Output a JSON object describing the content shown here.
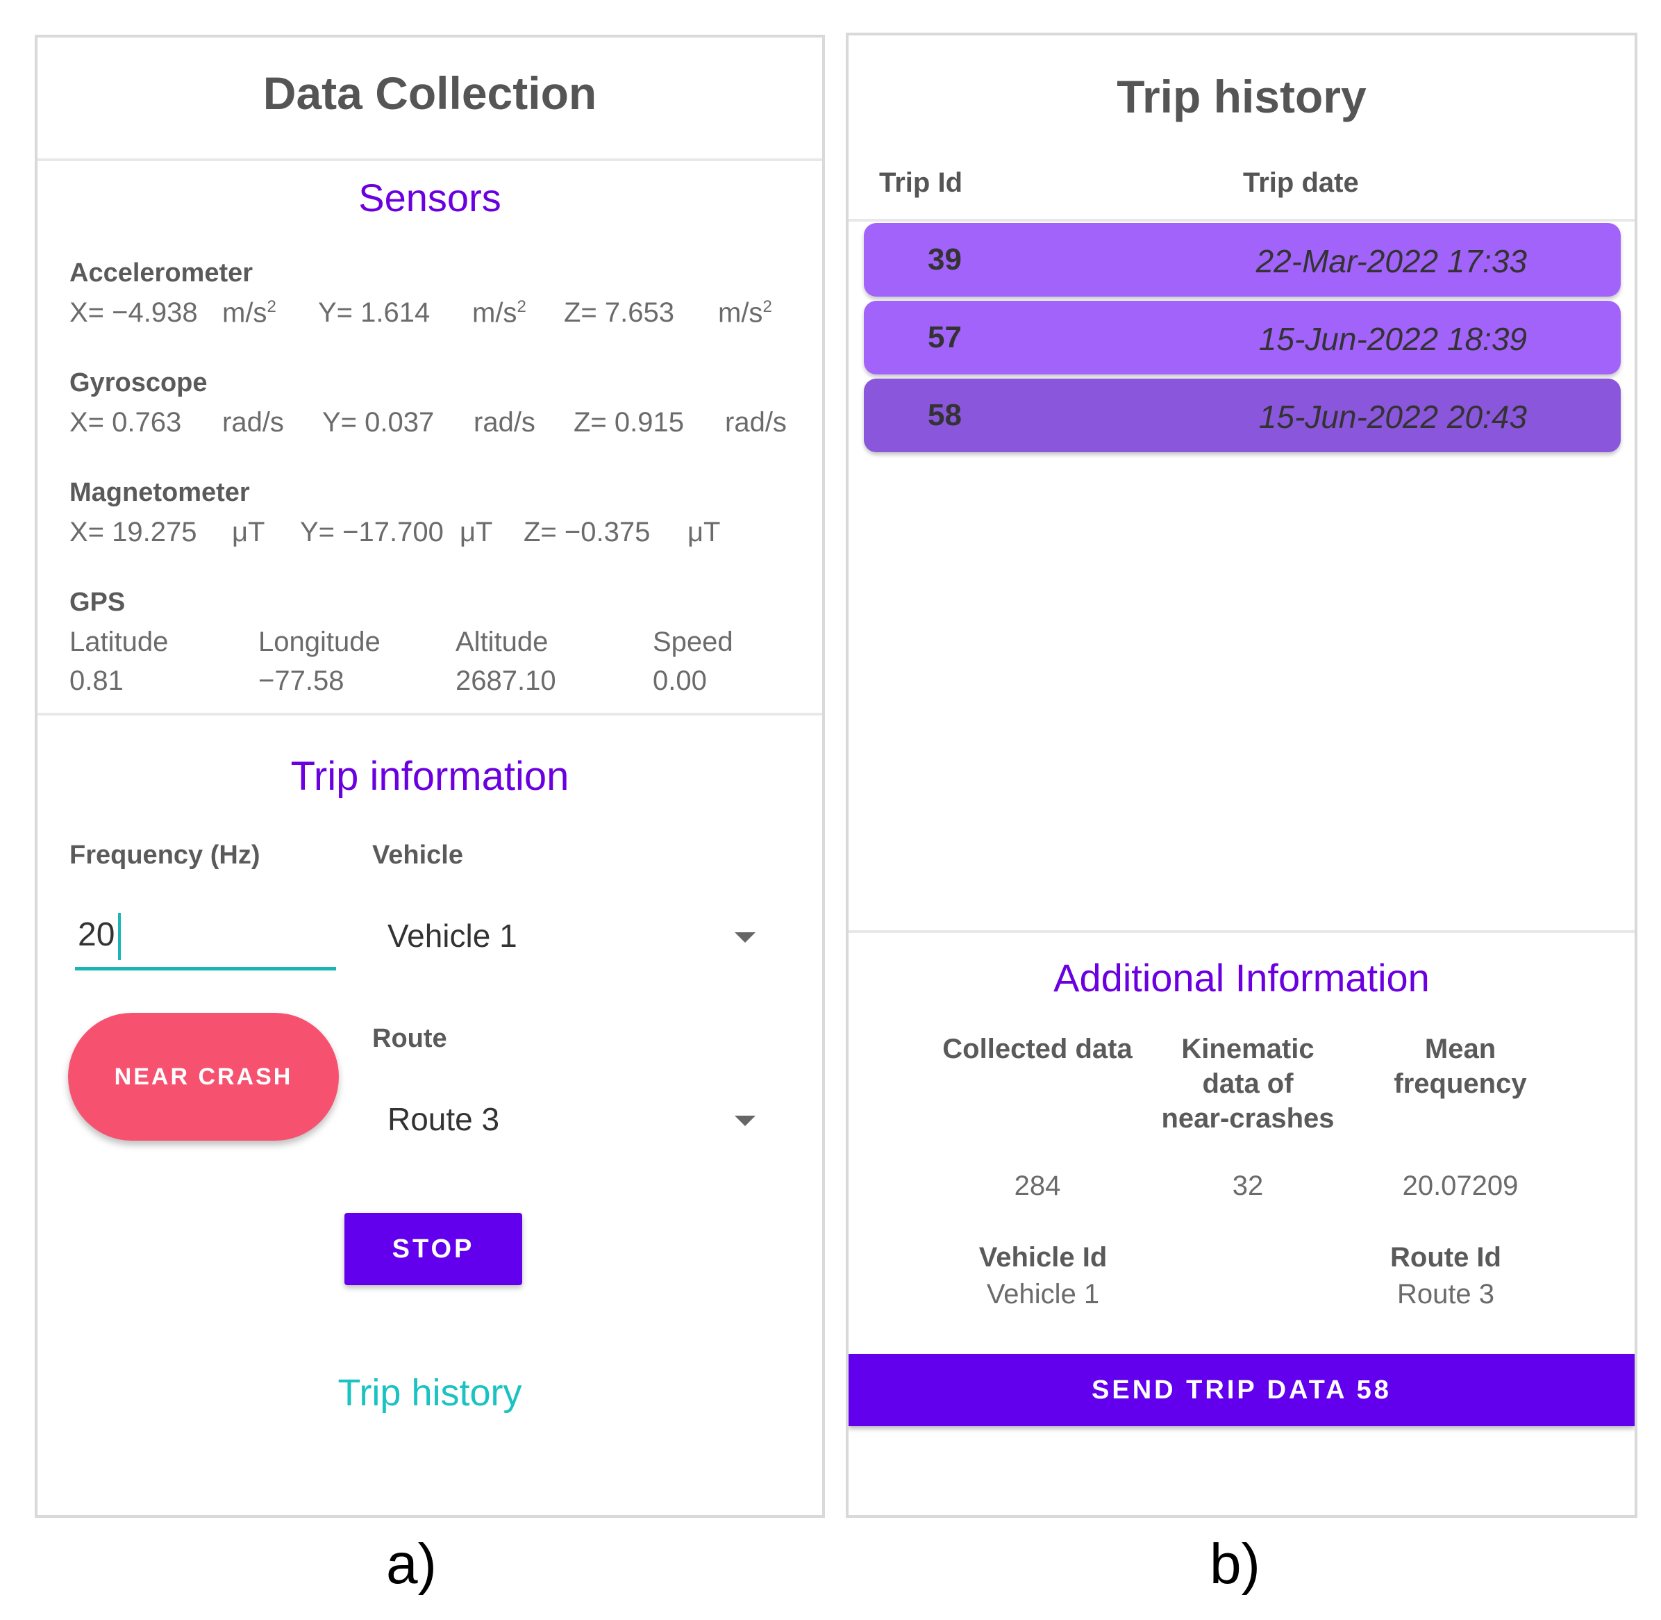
{
  "screen_a": {
    "title": "Data Collection",
    "sensors_title": "Sensors",
    "accelerometer": {
      "label": "Accelerometer",
      "x": "X= −4.938",
      "x_unit": "m/s",
      "y": "Y= 1.614",
      "y_unit": "m/s",
      "z": "Z= 7.653",
      "z_unit": "m/s",
      "exp": "2"
    },
    "gyroscope": {
      "label": "Gyroscope",
      "x": "X= 0.763",
      "x_unit": "rad/s",
      "y": "Y= 0.037",
      "y_unit": "rad/s",
      "z": "Z= 0.915",
      "z_unit": "rad/s"
    },
    "magnetometer": {
      "label": "Magnetometer",
      "x": "X= 19.275",
      "x_unit": "μT",
      "y": "Y= −17.700",
      "y_unit": "μT",
      "z": "Z= −0.375",
      "z_unit": "μT"
    },
    "gps": {
      "label": "GPS",
      "latitude_label": "Latitude",
      "latitude": "0.81",
      "longitude_label": "Longitude",
      "longitude": "−77.58",
      "altitude_label": "Altitude",
      "altitude": "2687.10",
      "speed_label": "Speed",
      "speed": "0.00"
    },
    "trip_info_title": "Trip information",
    "frequency_label": "Frequency (Hz)",
    "frequency_value": "20",
    "vehicle_label": "Vehicle",
    "vehicle_value": "Vehicle 1",
    "route_label": "Route",
    "route_value": "Route 3",
    "near_crash_label": "NEAR CRASH",
    "stop_label": "STOP",
    "trip_history_link": "Trip history"
  },
  "screen_b": {
    "title": "Trip history",
    "col_trip_id": "Trip Id",
    "col_trip_date": "Trip date",
    "trips": [
      {
        "id": "39",
        "date": "22-Mar-2022 17:33",
        "color": "#a263fb"
      },
      {
        "id": "57",
        "date": "15-Jun-2022 18:39",
        "color": "#a263fb"
      },
      {
        "id": "58",
        "date": "15-Jun-2022 20:43",
        "color": "#8a56dc"
      }
    ],
    "additional_title": "Additional Information",
    "collected_label": "Collected data",
    "kinematic_label_1": "Kinematic",
    "kinematic_label_2": "data of",
    "kinematic_label_3": "near-crashes",
    "mean_label_1": "Mean",
    "mean_label_2": "frequency",
    "collected_value": "284",
    "kinematic_value": "32",
    "mean_value": "20.07209",
    "vehicle_id_label": "Vehicle Id",
    "vehicle_id_value": "Vehicle 1",
    "route_id_label": "Route Id",
    "route_id_value": "Route 3",
    "send_label": "SEND TRIP DATA 58"
  },
  "captions": {
    "a": "a)",
    "b": "b)"
  },
  "colors": {
    "accent": "#6200ee",
    "near_crash": "#f65270",
    "teal": "#1ac2c2"
  }
}
